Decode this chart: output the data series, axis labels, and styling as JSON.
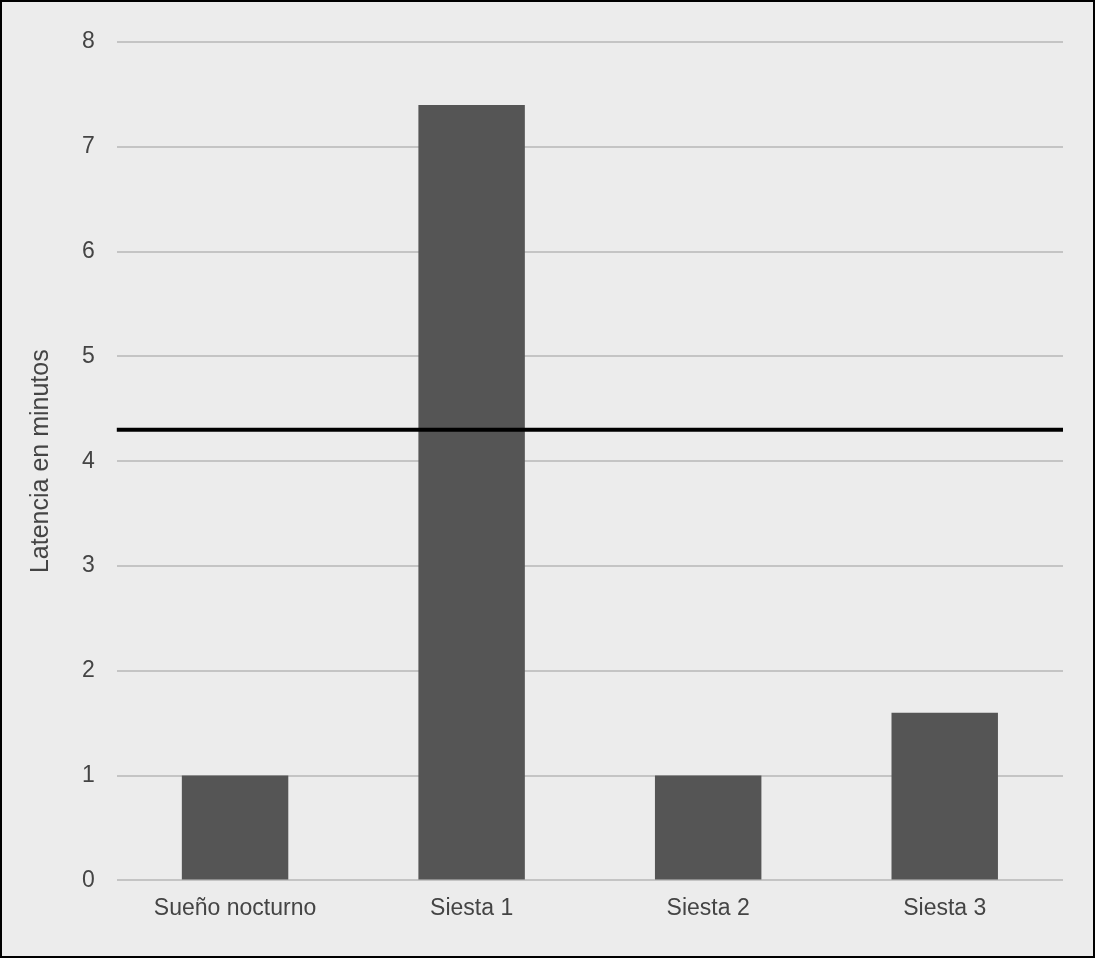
{
  "chart_data": {
    "type": "bar",
    "ylabel": "Latencia en minutos",
    "categories": [
      "Sueño nocturno",
      "Siesta 1",
      "Siesta 2",
      "Siesta 3"
    ],
    "values": [
      1,
      7.4,
      1,
      1.6
    ],
    "color": "#555555",
    "ylim": [
      0,
      8
    ],
    "yticks": [
      0,
      1,
      2,
      3,
      4,
      5,
      6,
      7,
      8
    ],
    "grid": "y",
    "ref_lines": [
      {
        "axis": "y",
        "value": 4.3,
        "color": "#000000"
      }
    ]
  }
}
